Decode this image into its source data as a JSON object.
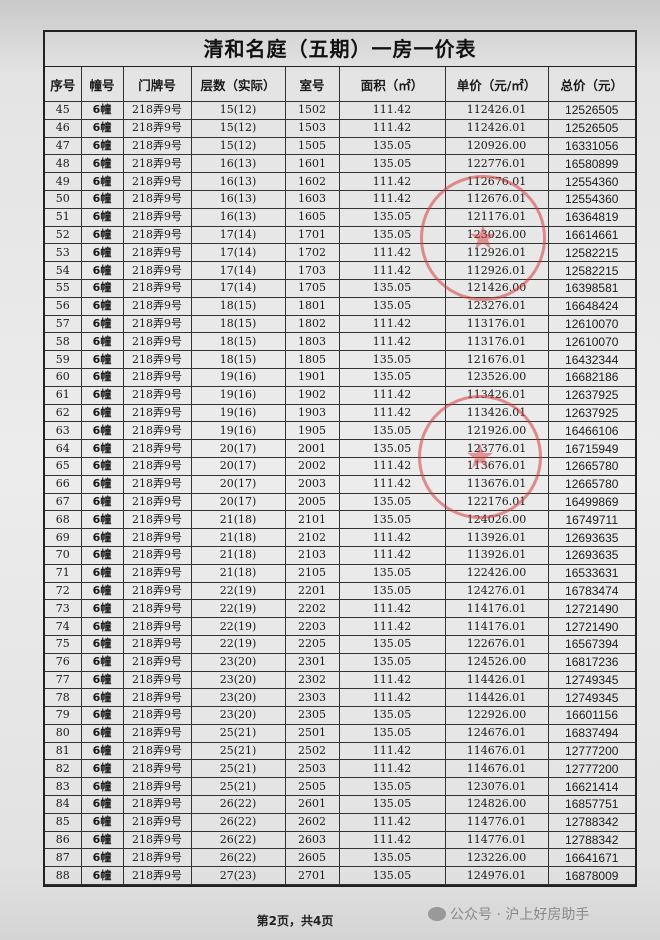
{
  "document": {
    "title": "清和名庭（五期）一房一价表",
    "columns": [
      "序号",
      "幢号",
      "门牌号",
      "层数（实际）",
      "室号",
      "面积（㎡）",
      "单价（元/㎡）",
      "总价（元）"
    ],
    "rows": [
      [
        "45",
        "6幢",
        "218弄9号",
        "15(12)",
        "1502",
        "111.42",
        "112426.01",
        "12526505"
      ],
      [
        "46",
        "6幢",
        "218弄9号",
        "15(12)",
        "1503",
        "111.42",
        "112426.01",
        "12526505"
      ],
      [
        "47",
        "6幢",
        "218弄9号",
        "15(12)",
        "1505",
        "135.05",
        "120926.00",
        "16331056"
      ],
      [
        "48",
        "6幢",
        "218弄9号",
        "16(13)",
        "1601",
        "135.05",
        "122776.01",
        "16580899"
      ],
      [
        "49",
        "6幢",
        "218弄9号",
        "16(13)",
        "1602",
        "111.42",
        "112676.01",
        "12554360"
      ],
      [
        "50",
        "6幢",
        "218弄9号",
        "16(13)",
        "1603",
        "111.42",
        "112676.01",
        "12554360"
      ],
      [
        "51",
        "6幢",
        "218弄9号",
        "16(13)",
        "1605",
        "135.05",
        "121176.01",
        "16364819"
      ],
      [
        "52",
        "6幢",
        "218弄9号",
        "17(14)",
        "1701",
        "135.05",
        "123026.00",
        "16614661"
      ],
      [
        "53",
        "6幢",
        "218弄9号",
        "17(14)",
        "1702",
        "111.42",
        "112926.01",
        "12582215"
      ],
      [
        "54",
        "6幢",
        "218弄9号",
        "17(14)",
        "1703",
        "111.42",
        "112926.01",
        "12582215"
      ],
      [
        "55",
        "6幢",
        "218弄9号",
        "17(14)",
        "1705",
        "135.05",
        "121426.00",
        "16398581"
      ],
      [
        "56",
        "6幢",
        "218弄9号",
        "18(15)",
        "1801",
        "135.05",
        "123276.01",
        "16648424"
      ],
      [
        "57",
        "6幢",
        "218弄9号",
        "18(15)",
        "1802",
        "111.42",
        "113176.01",
        "12610070"
      ],
      [
        "58",
        "6幢",
        "218弄9号",
        "18(15)",
        "1803",
        "111.42",
        "113176.01",
        "12610070"
      ],
      [
        "59",
        "6幢",
        "218弄9号",
        "18(15)",
        "1805",
        "135.05",
        "121676.01",
        "16432344"
      ],
      [
        "60",
        "6幢",
        "218弄9号",
        "19(16)",
        "1901",
        "135.05",
        "123526.00",
        "16682186"
      ],
      [
        "61",
        "6幢",
        "218弄9号",
        "19(16)",
        "1902",
        "111.42",
        "113426.01",
        "12637925"
      ],
      [
        "62",
        "6幢",
        "218弄9号",
        "19(16)",
        "1903",
        "111.42",
        "113426.01",
        "12637925"
      ],
      [
        "63",
        "6幢",
        "218弄9号",
        "19(16)",
        "1905",
        "135.05",
        "121926.00",
        "16466106"
      ],
      [
        "64",
        "6幢",
        "218弄9号",
        "20(17)",
        "2001",
        "135.05",
        "123776.01",
        "16715949"
      ],
      [
        "65",
        "6幢",
        "218弄9号",
        "20(17)",
        "2002",
        "111.42",
        "113676.01",
        "12665780"
      ],
      [
        "66",
        "6幢",
        "218弄9号",
        "20(17)",
        "2003",
        "111.42",
        "113676.01",
        "12665780"
      ],
      [
        "67",
        "6幢",
        "218弄9号",
        "20(17)",
        "2005",
        "135.05",
        "122176.01",
        "16499869"
      ],
      [
        "68",
        "6幢",
        "218弄9号",
        "21(18)",
        "2101",
        "135.05",
        "124026.00",
        "16749711"
      ],
      [
        "69",
        "6幢",
        "218弄9号",
        "21(18)",
        "2102",
        "111.42",
        "113926.01",
        "12693635"
      ],
      [
        "70",
        "6幢",
        "218弄9号",
        "21(18)",
        "2103",
        "111.42",
        "113926.01",
        "12693635"
      ],
      [
        "71",
        "6幢",
        "218弄9号",
        "21(18)",
        "2105",
        "135.05",
        "122426.00",
        "16533631"
      ],
      [
        "72",
        "6幢",
        "218弄9号",
        "22(19)",
        "2201",
        "135.05",
        "124276.01",
        "16783474"
      ],
      [
        "73",
        "6幢",
        "218弄9号",
        "22(19)",
        "2202",
        "111.42",
        "114176.01",
        "12721490"
      ],
      [
        "74",
        "6幢",
        "218弄9号",
        "22(19)",
        "2203",
        "111.42",
        "114176.01",
        "12721490"
      ],
      [
        "75",
        "6幢",
        "218弄9号",
        "22(19)",
        "2205",
        "135.05",
        "122676.01",
        "16567394"
      ],
      [
        "76",
        "6幢",
        "218弄9号",
        "23(20)",
        "2301",
        "135.05",
        "124526.00",
        "16817236"
      ],
      [
        "77",
        "6幢",
        "218弄9号",
        "23(20)",
        "2302",
        "111.42",
        "114426.01",
        "12749345"
      ],
      [
        "78",
        "6幢",
        "218弄9号",
        "23(20)",
        "2303",
        "111.42",
        "114426.01",
        "12749345"
      ],
      [
        "79",
        "6幢",
        "218弄9号",
        "23(20)",
        "2305",
        "135.05",
        "122926.00",
        "16601156"
      ],
      [
        "80",
        "6幢",
        "218弄9号",
        "25(21)",
        "2501",
        "135.05",
        "124676.01",
        "16837494"
      ],
      [
        "81",
        "6幢",
        "218弄9号",
        "25(21)",
        "2502",
        "111.42",
        "114676.01",
        "12777200"
      ],
      [
        "82",
        "6幢",
        "218弄9号",
        "25(21)",
        "2503",
        "111.42",
        "114676.01",
        "12777200"
      ],
      [
        "83",
        "6幢",
        "218弄9号",
        "25(21)",
        "2505",
        "135.05",
        "123076.01",
        "16621414"
      ],
      [
        "84",
        "6幢",
        "218弄9号",
        "26(22)",
        "2601",
        "135.05",
        "124826.00",
        "16857751"
      ],
      [
        "85",
        "6幢",
        "218弄9号",
        "26(22)",
        "2602",
        "111.42",
        "114776.01",
        "12788342"
      ],
      [
        "86",
        "6幢",
        "218弄9号",
        "26(22)",
        "2603",
        "111.42",
        "114776.01",
        "12788342"
      ],
      [
        "87",
        "6幢",
        "218弄9号",
        "26(22)",
        "2605",
        "135.05",
        "123226.00",
        "16641671"
      ],
      [
        "88",
        "6幢",
        "218弄9号",
        "27(23)",
        "2701",
        "135.05",
        "124976.01",
        "16878009"
      ]
    ],
    "footer": "第2页，共4页"
  },
  "watermark": {
    "icon": "wechat-icon",
    "text": "公众号 · 沪上好房助手"
  },
  "stamp_color": "#d63c3c"
}
